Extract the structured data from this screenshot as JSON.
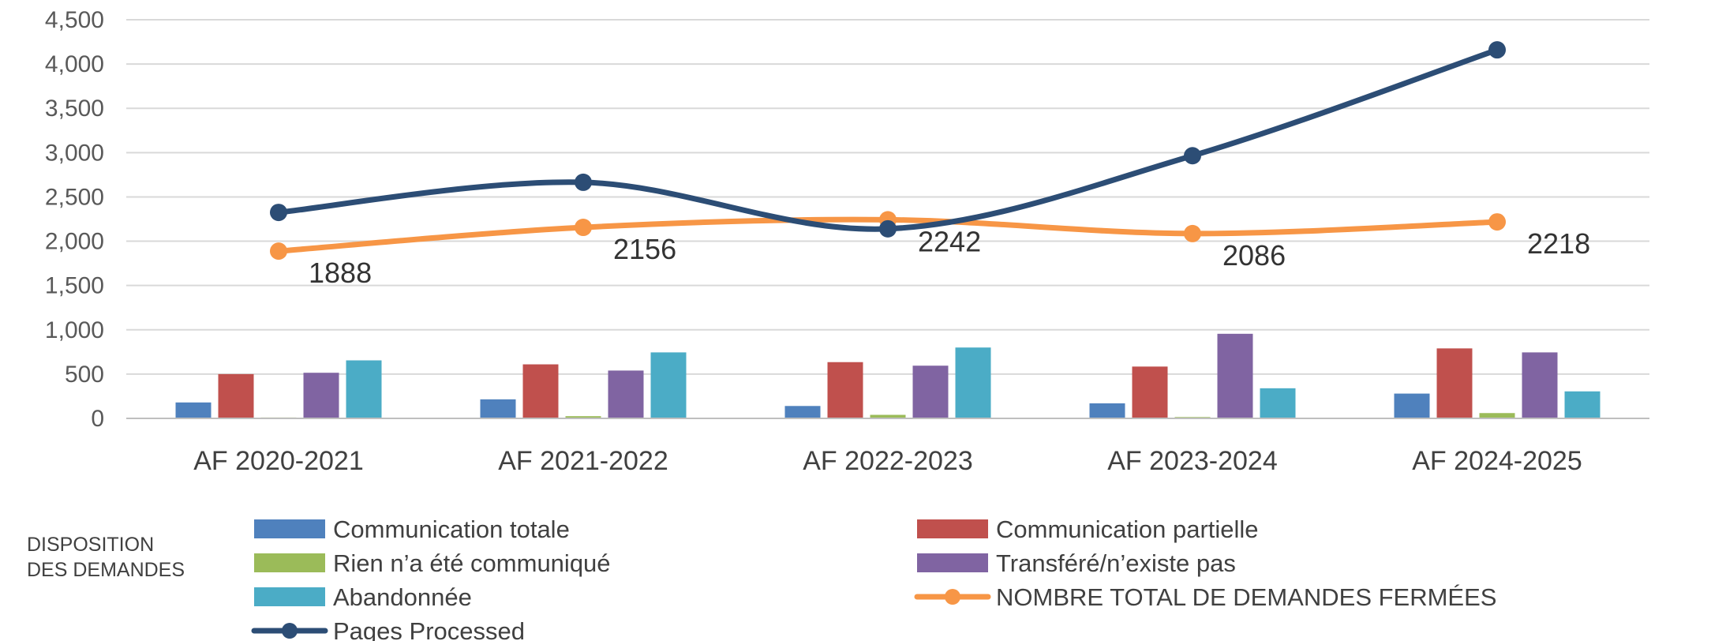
{
  "chart_data": {
    "type": "bar",
    "categories": [
      "AF 2020-2021",
      "AF 2021-2022",
      "AF 2022-2023",
      "AF 2023-2024",
      "AF 2024-2025"
    ],
    "series": [
      {
        "name": "Communication totale",
        "kind": "bar",
        "color": "#4f81bd",
        "values": [
          180,
          215,
          140,
          170,
          280
        ]
      },
      {
        "name": "Communication partielle",
        "kind": "bar",
        "color": "#c0504d",
        "values": [
          500,
          610,
          635,
          585,
          790
        ]
      },
      {
        "name": "Rien n’a été communiqué",
        "kind": "bar",
        "color": "#9bbb59",
        "values": [
          10,
          25,
          40,
          15,
          60
        ]
      },
      {
        "name": "Transféré/n’existe pas",
        "kind": "bar",
        "color": "#8064a2",
        "values": [
          515,
          540,
          595,
          955,
          745
        ]
      },
      {
        "name": "Abandonnée",
        "kind": "bar",
        "color": "#4bacc6",
        "values": [
          655,
          745,
          800,
          340,
          305
        ]
      },
      {
        "name": "NOMBRE TOTAL DE DEMANDES FERMÉES",
        "kind": "line",
        "color": "#f79646",
        "values": [
          1888,
          2156,
          2242,
          2086,
          2218
        ],
        "labels": [
          "1888",
          "2156",
          "2242",
          "2086",
          "2218"
        ]
      },
      {
        "name": "Pages Processed",
        "kind": "line",
        "color": "#2c4d75",
        "values": [
          2325,
          2665,
          2140,
          2965,
          4160
        ]
      }
    ],
    "yticks": [
      "0",
      "500",
      "1,000",
      "1,500",
      "2,000",
      "2,500",
      "3,000",
      "3,500",
      "4,000",
      "4,500"
    ],
    "ylim": [
      0,
      4500
    ],
    "grid": true,
    "legend_position": "bottom",
    "legend_title": [
      "DISPOSITION",
      "DES DEMANDES"
    ]
  }
}
